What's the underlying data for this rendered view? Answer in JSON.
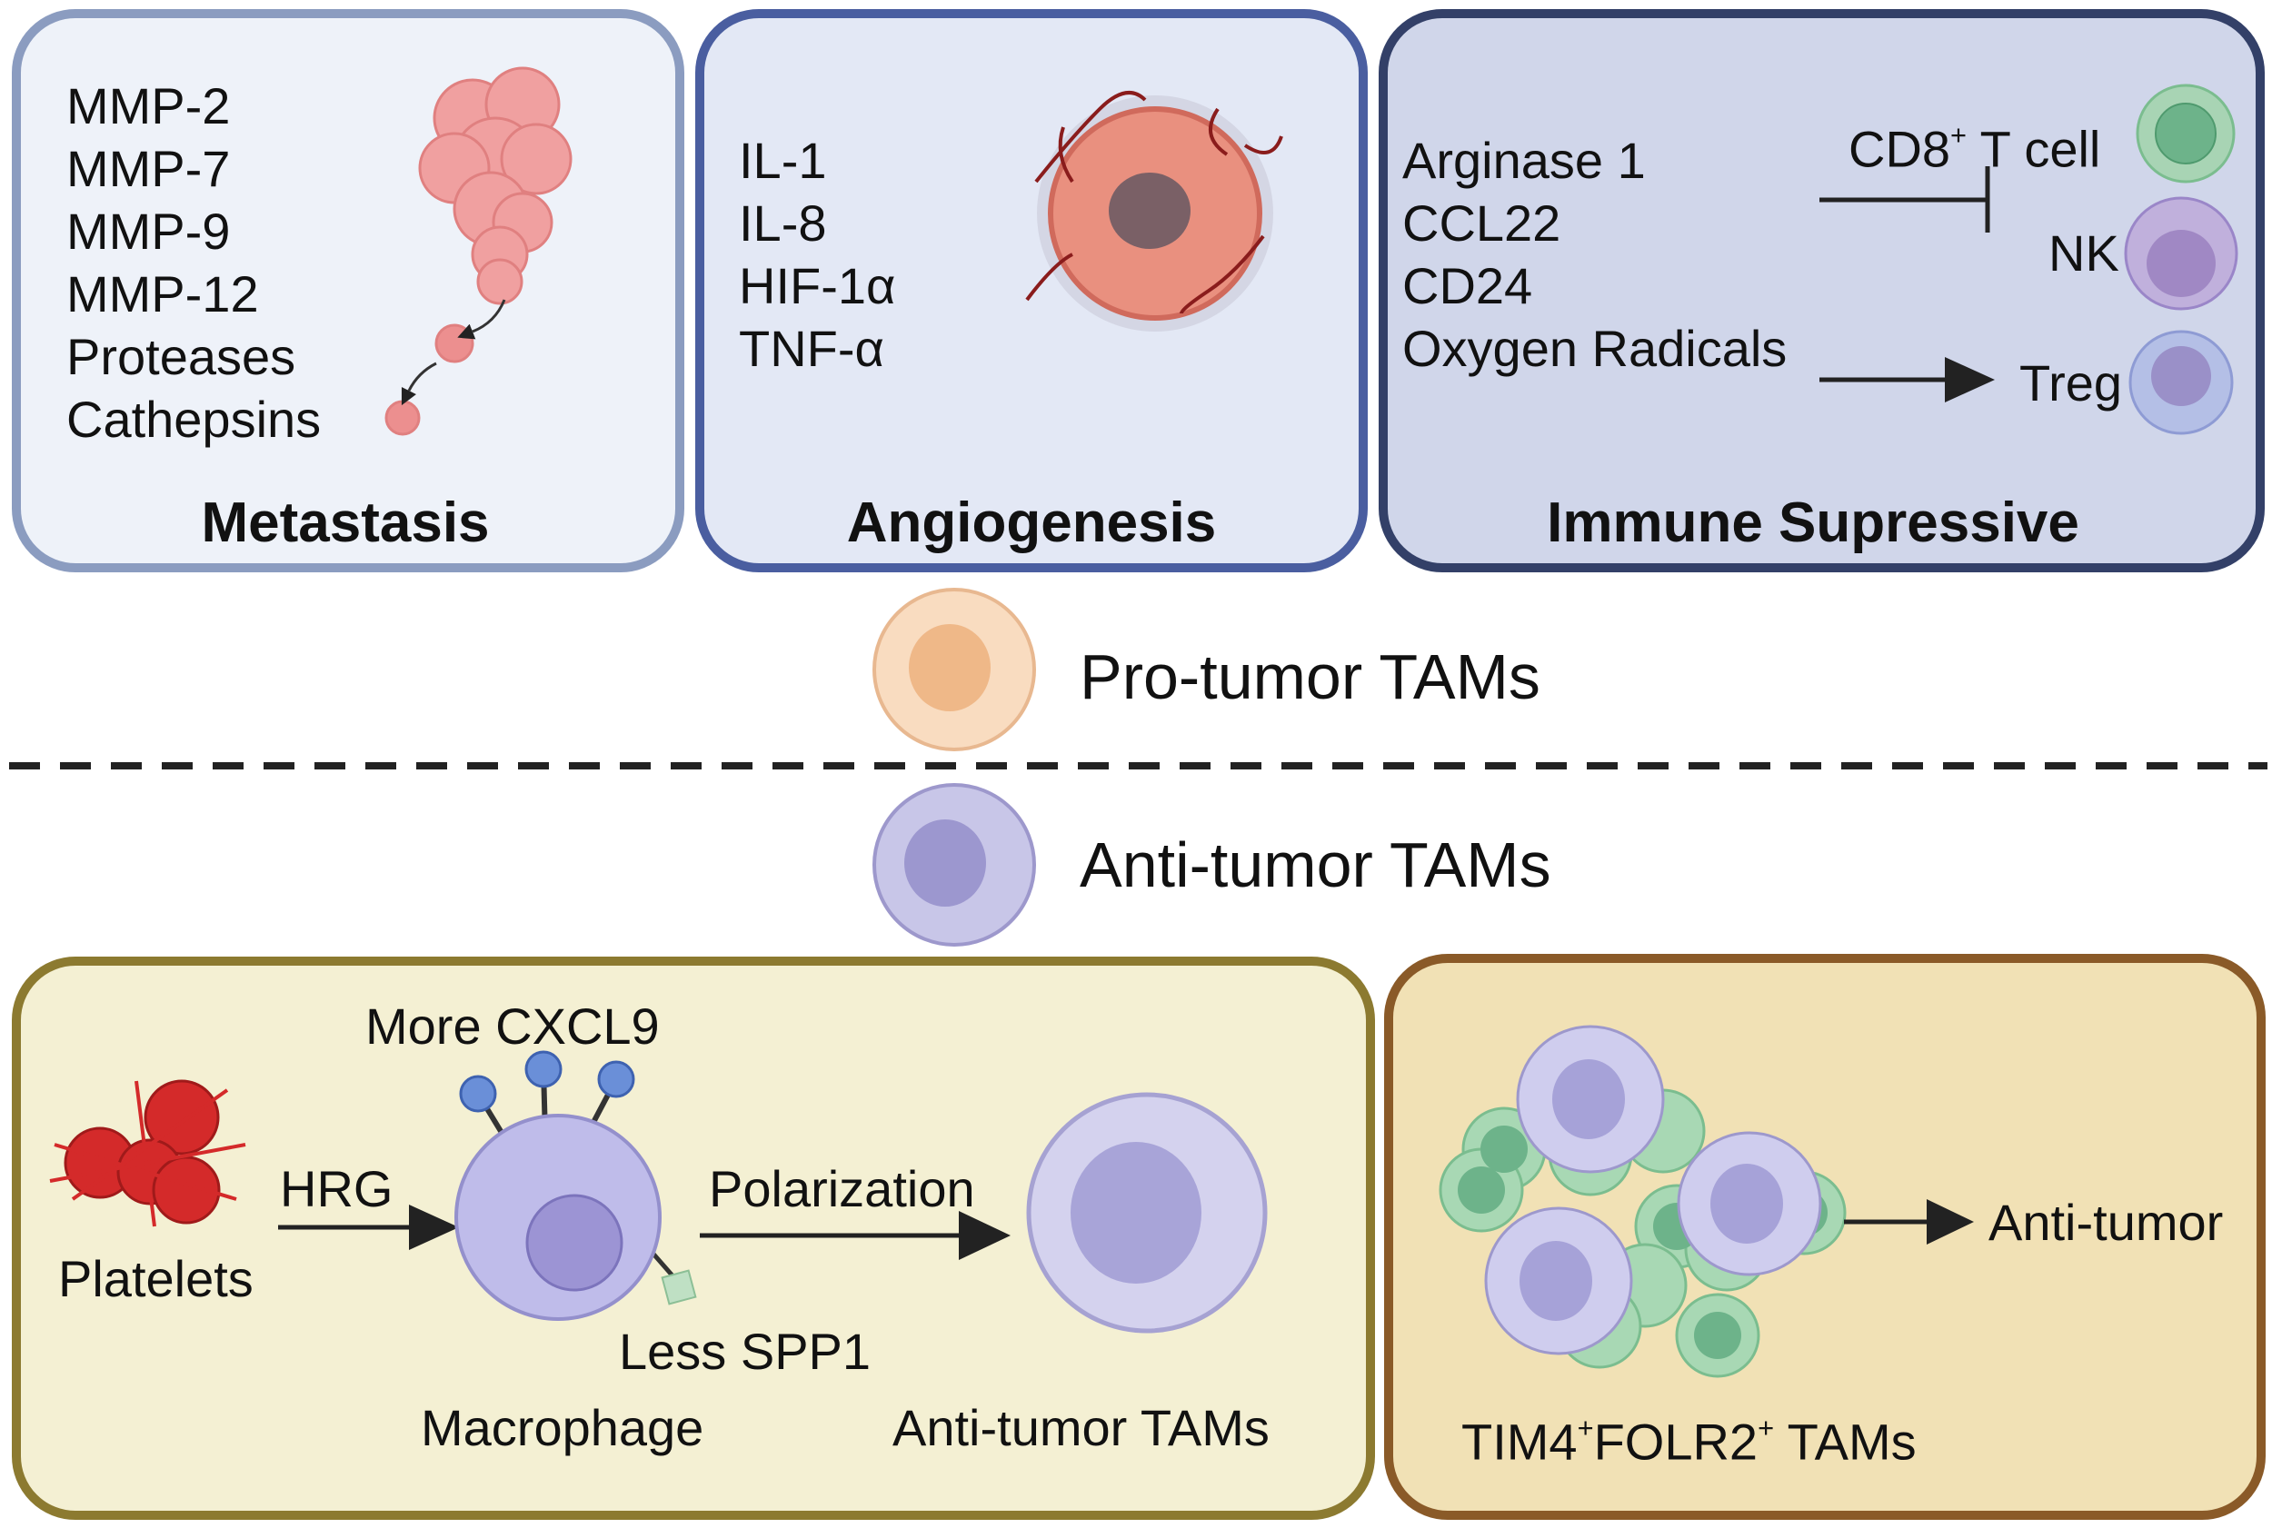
{
  "top_panels": {
    "metastasis": {
      "title": "Metastasis",
      "items": [
        "MMP-2",
        "MMP-7",
        "MMP-9",
        "MMP-12",
        "Proteases",
        "Cathepsins"
      ]
    },
    "angiogenesis": {
      "title": "Angiogenesis",
      "items": [
        "IL-1",
        "IL-8",
        "HIF-1α",
        "TNF-α"
      ]
    },
    "immune": {
      "title": "Immune Supressive",
      "items": [
        "Arginase 1",
        "CCL22",
        "CD24",
        "Oxygen Radicals"
      ],
      "cd8_label": "CD8",
      "cd8_sup": "+",
      "cd8_suffix": " T cell",
      "nk_label": "NK",
      "treg_label": "Treg"
    }
  },
  "middle": {
    "pro_label": "Pro-tumor TAMs",
    "anti_label": "Anti-tumor TAMs"
  },
  "bottom_panels": {
    "left": {
      "more_cxcl9": "More CXCL9",
      "hrg": "HRG",
      "platelets": "Platelets",
      "polarization": "Polarization",
      "less_spp1": "Less SPP1",
      "macrophage": "Macrophage",
      "anti_tumor_tams": "Anti-tumor TAMs"
    },
    "right": {
      "tim4": "TIM4",
      "sup1": "+",
      "folr2": "FOLR2",
      "sup2": "+",
      "tams": " TAMs",
      "anti_tumor": "Anti-tumor"
    }
  },
  "colors": {
    "metastasis_fill": "#eef2f9",
    "metastasis_border": "#8b9cc0",
    "angio_fill": "#e3e8f5",
    "angio_border": "#4a5ea0",
    "immune_fill": "#d0d6ea",
    "immune_border": "#334068",
    "bottom_left_fill": "#f4f0d3",
    "bottom_left_border": "#8c7a30",
    "bottom_right_fill": "#f1e1b5",
    "bottom_right_border": "#8a5a28"
  }
}
